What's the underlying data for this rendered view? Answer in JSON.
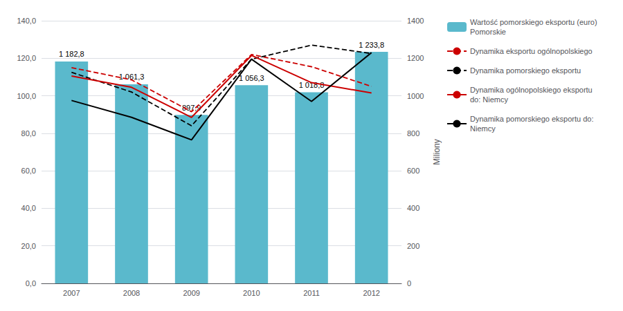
{
  "chart_data": {
    "type": "bar",
    "categories": [
      "2007",
      "2008",
      "2009",
      "2010",
      "2011",
      "2012"
    ],
    "series": [
      {
        "name": "Wartość pomorskiego eksportu (euro)\nPomorskie",
        "type": "bar",
        "axis": "y2",
        "color": "#5ab9cc",
        "values": [
          1182.8,
          1061.3,
          897.9,
          1056.3,
          1018.8,
          1233.8
        ],
        "value_labels": [
          "1 182,8",
          "1 061,3",
          "897,9",
          "1 056,3",
          "1 018,8",
          "1 233,8"
        ],
        "data_labels": true
      },
      {
        "name": "Dynamika eksportu ogólnopolskiego",
        "type": "line",
        "color": "#cc0000",
        "line_style": "dashed",
        "marker": "none",
        "values": [
          115.0,
          108.5,
          91.5,
          122.0,
          115.5,
          105.0
        ]
      },
      {
        "name": "Dynamika pomorskiego eksportu",
        "type": "line",
        "color": "#000000",
        "line_style": "dashed",
        "marker": "none",
        "values": [
          112.5,
          102.0,
          84.0,
          119.5,
          127.0,
          122.5
        ]
      },
      {
        "name": "Dynamika ogólnopolskiego eksportu\ndo: Niemcy",
        "type": "line",
        "color": "#cc0000",
        "line_style": "solid",
        "marker": "none",
        "values": [
          110.5,
          104.5,
          88.5,
          121.5,
          107.0,
          101.5
        ]
      },
      {
        "name": "Dynamika pomorskiego eksportu do:\nNiemcy",
        "type": "line",
        "color": "#000000",
        "line_style": "solid",
        "marker": "none",
        "values": [
          97.5,
          88.5,
          76.5,
          119.5,
          97.0,
          123.0
        ]
      }
    ],
    "ylim": [
      0,
      140
    ],
    "yticks": [
      {
        "value": 0,
        "label": "0,0"
      },
      {
        "value": 20,
        "label": "20,0"
      },
      {
        "value": 40,
        "label": "40,0"
      },
      {
        "value": 60,
        "label": "60,0"
      },
      {
        "value": 80,
        "label": "80,0"
      },
      {
        "value": 100,
        "label": "100,0"
      },
      {
        "value": 120,
        "label": "120,0"
      },
      {
        "value": 140,
        "label": "140,0"
      }
    ],
    "y2lim": [
      0,
      1400
    ],
    "y2ticks": [
      0,
      200,
      400,
      600,
      800,
      1000,
      1200,
      1400
    ],
    "y2label": "Miliony",
    "grid": true,
    "legend": "right"
  }
}
